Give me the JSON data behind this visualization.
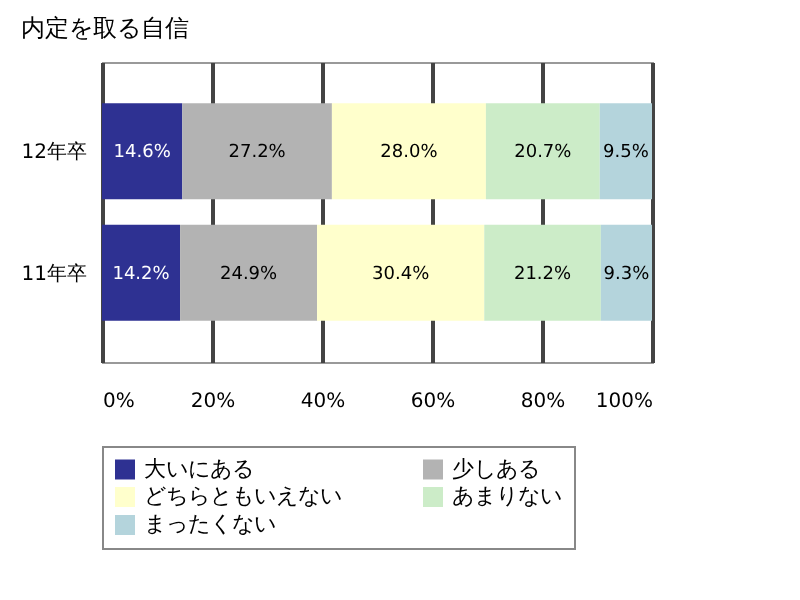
{
  "chart_data": {
    "type": "bar",
    "orientation": "horizontal",
    "stacked": true,
    "title": "内定を取る自信",
    "categories": [
      "12年卒",
      "11年卒"
    ],
    "series": [
      {
        "name": "大いにある",
        "color": "#2e3192",
        "values": [
          14.6,
          14.2
        ]
      },
      {
        "name": "少しある",
        "color": "#b3b3b3",
        "values": [
          27.2,
          24.9
        ]
      },
      {
        "name": "どちらともいえない",
        "color": "#ffffcc",
        "values": [
          28.0,
          30.4
        ]
      },
      {
        "name": "あまりない",
        "color": "#ccecc8",
        "values": [
          20.7,
          21.2
        ]
      },
      {
        "name": "まったくない",
        "color": "#b4d4dc",
        "values": [
          9.5,
          9.3
        ]
      }
    ],
    "xlim": [
      0,
      100
    ],
    "xticks": [
      {
        "value": 0,
        "label": "0%"
      },
      {
        "value": 20,
        "label": "20%"
      },
      {
        "value": 40,
        "label": "40%"
      },
      {
        "value": 60,
        "label": "60%"
      },
      {
        "value": 80,
        "label": "80%"
      },
      {
        "value": 100,
        "label": "100%"
      }
    ],
    "value_labels": [
      [
        "14.6%",
        "14.2%"
      ],
      [
        "27.2%",
        "24.9%"
      ],
      [
        "28.0%",
        "30.4%"
      ],
      [
        "20.7%",
        "21.2%"
      ],
      [
        "9.5%",
        "9.3%"
      ]
    ],
    "grid": "x",
    "legend": "bottom"
  }
}
